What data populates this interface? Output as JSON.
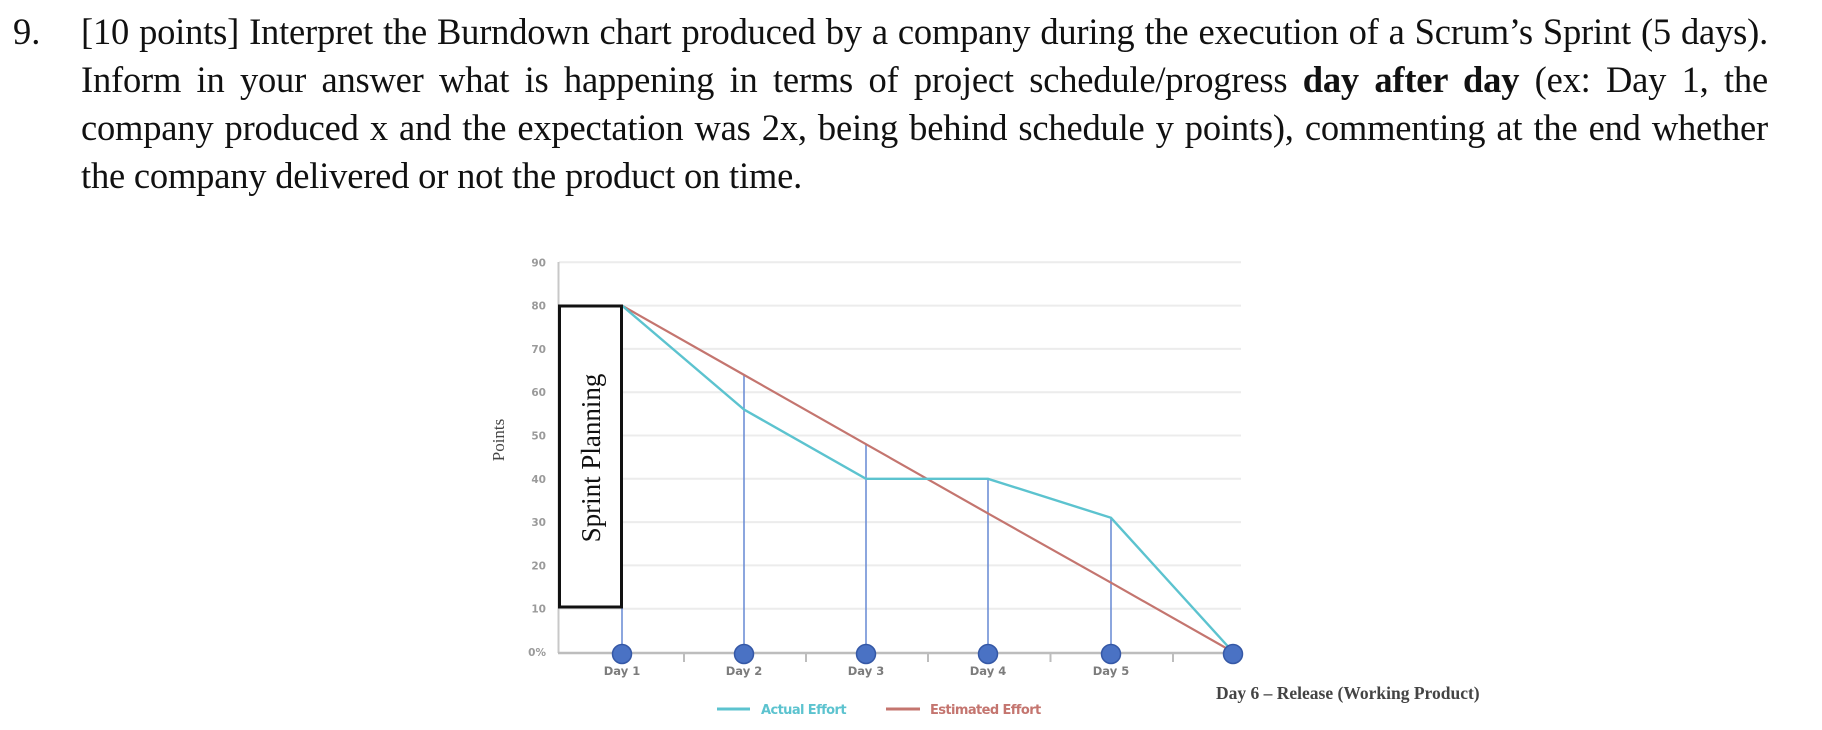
{
  "question": {
    "number": "9.",
    "segments": [
      {
        "text": "[10 points] Interpret the Burndown chart produced by a company during the execution of a Scrum’s Sprint (5 days). Inform in your answer what is happening in terms of project schedule/progress ",
        "bold": false
      },
      {
        "text": "day after day",
        "bold": true
      },
      {
        "text": " (ex: Day 1, the company produced x and the expectation was 2x, being behind schedule y points), commenting at the end whether the company delivered or not the product on time.",
        "bold": false
      }
    ]
  },
  "chart_data": {
    "type": "line",
    "title": "",
    "xlabel": "",
    "ylabel": "Points",
    "ylim": [
      0,
      90
    ],
    "yticks": [
      "0%",
      "10",
      "20",
      "30",
      "40",
      "50",
      "60",
      "70",
      "80",
      "90"
    ],
    "grid": true,
    "categories": [
      "Day 1",
      "Day 2",
      "Day 3",
      "Day 4",
      "Day 5",
      "Day 6"
    ],
    "x_tick_labels": [
      "Day 1",
      "Day 2",
      "Day 3",
      "Day 4",
      "Day 5",
      ""
    ],
    "series": [
      {
        "name": "Actual Effort",
        "color": "#5cc3cf",
        "values": [
          80,
          56,
          40,
          40,
          31,
          0
        ]
      },
      {
        "name": "Estimated Effort",
        "color": "#c4756f",
        "values": [
          80,
          64,
          48,
          32,
          16,
          0
        ]
      }
    ],
    "annotations": [
      {
        "text": "Sprint Planning",
        "type": "box",
        "y_range": [
          10,
          80
        ],
        "at": "Day 1"
      },
      {
        "text": "Day 6 – Release (Working Product)",
        "type": "label",
        "at": "Day 6"
      }
    ],
    "legend": {
      "position": "bottom",
      "entries": [
        "Actual Effort",
        "Estimated Effort"
      ]
    },
    "marker_color": "#4a72c4"
  },
  "chart_labels": {
    "y_axis_title": "Points",
    "sprint_planning": "Sprint Planning",
    "release": "Day 6 – Release (Working Product)",
    "legend_actual": "Actual Effort",
    "legend_estimated": "Estimated Effort"
  }
}
